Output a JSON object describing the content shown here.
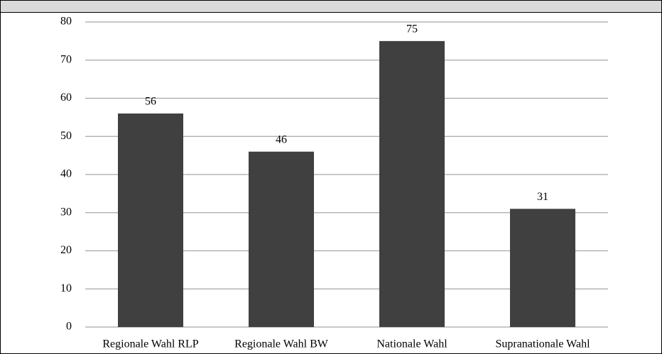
{
  "chart_data": {
    "type": "bar",
    "categories": [
      "Regionale Wahl RLP",
      "Regionale Wahl BW",
      "Nationale Wahl",
      "Supranationale Wahl"
    ],
    "values": [
      56,
      46,
      75,
      31
    ],
    "color": "#404040",
    "ylim": [
      0,
      80
    ],
    "yticks": [
      0,
      10,
      20,
      30,
      40,
      50,
      60,
      70,
      80
    ],
    "grid": true,
    "value_labels_shown": true
  }
}
